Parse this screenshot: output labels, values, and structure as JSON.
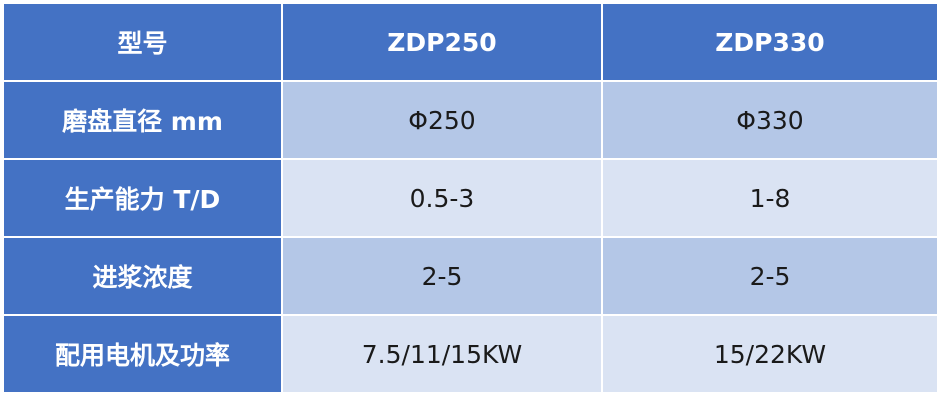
{
  "header": [
    "型号",
    "ZDP250",
    "ZDP330"
  ],
  "rows": [
    [
      "磨盘直径 mm",
      "Φ250",
      "Φ330"
    ],
    [
      "生产能力 T/D",
      "0.5-3",
      "1-8"
    ],
    [
      "进浆浓度",
      "2-5",
      "2-5"
    ],
    [
      "配用电机及功率",
      "7.5/11/15KW",
      "15/22KW"
    ]
  ],
  "colors": {
    "header": "#4472C4",
    "row_odd": "#B4C7E7",
    "row_even": "#DAE3F3"
  }
}
